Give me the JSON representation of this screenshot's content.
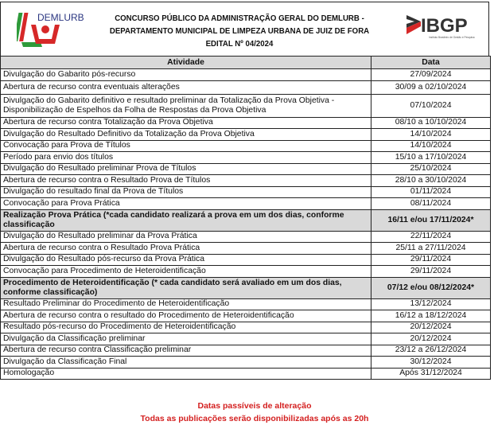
{
  "header": {
    "left_logo_text": "DEMLURB",
    "right_logo_text": "IBGP",
    "right_logo_subtitle": "Instituto Brasileiro de Gestão e Pesquisa",
    "title_lines": [
      "CONCURSO PÚBLICO DA ADMINISTRAÇÃO GERAL DO DEMLURB -",
      "DEPARTAMENTO MUNICIPAL DE LIMPEZA URBANA DE JUIZ DE FORA",
      "EDITAL Nº 04/2024"
    ]
  },
  "table": {
    "columns": [
      "Atividade",
      "Data"
    ],
    "rows": [
      {
        "activity": "Divulgação do Gabarito pós-recurso",
        "date": "27/09/2024"
      },
      {
        "activity": "Abertura de recurso contra eventuais alterações",
        "date": "30/09 a 02/10/2024"
      },
      {
        "activity": "Divulgação do Gabarito definitivo e resultado preliminar da Totalização da Prova Objetiva - Disponibilização de Espelhos da Folha de Respostas da Prova Objetiva",
        "date": "07/10/2024"
      },
      {
        "activity": "Abertura de recurso contra Totalização da Prova Objetiva",
        "date": "08/10 a 10/10/2024"
      },
      {
        "activity": "Divulgação do Resultado Definitivo da Totalização da Prova Objetiva",
        "date": "14/10/2024"
      },
      {
        "activity": "Convocação para Prova de Títulos",
        "date": "14/10/2024"
      },
      {
        "activity": "Período para envio dos títulos",
        "date": "15/10 a 17/10/2024"
      },
      {
        "activity": "Divulgação do Resultado preliminar Prova de Títulos",
        "date": "25/10/2024"
      },
      {
        "activity": "Abertura de recurso contra o Resultado Prova de Títulos",
        "date": "28/10 a 30/10/2024"
      },
      {
        "activity": "Divulgação do resultado final da Prova de Títulos",
        "date": "01/11/2024"
      },
      {
        "activity": "Convocação para Prova Prática",
        "date": "08/11/2024"
      },
      {
        "activity": "Realização Prova Prática (*cada candidato realizará a prova em um dos dias, conforme classificação",
        "date": "16/11 e/ou 17/11/2024*",
        "highlight": true
      },
      {
        "activity": "Divulgação do Resultado preliminar da Prova Prática",
        "date": "22/11/2024"
      },
      {
        "activity": "Abertura de recurso contra o Resultado Prova Prática",
        "date": "25/11 a 27/11/2024"
      },
      {
        "activity": "Divulgação do Resultado pós-recurso da Prova Prática",
        "date": "29/11/2024"
      },
      {
        "activity": "Convocação para Procedimento de Heteroidentificação",
        "date": "29/11/2024"
      },
      {
        "activity": "Procedimento de Heteroidentificação (* cada candidato será avaliado em um dos dias, conforme classificação)",
        "date": "07/12 e/ou 08/12/2024*",
        "highlight": true
      },
      {
        "activity": "Resultado Preliminar do Procedimento de Heteroidentificação",
        "date": "13/12/2024"
      },
      {
        "activity": "Abertura de recurso contra o resultado do Procedimento de Heteroidentificação",
        "date": "16/12 a 18/12/2024"
      },
      {
        "activity": "Resultado pós-recurso do Procedimento de Heteroidentificação",
        "date": "20/12/2024"
      },
      {
        "activity": "Divulgação da Classificação preliminar",
        "date": "20/12/2024"
      },
      {
        "activity": "Abertura de recurso contra Classificação preliminar",
        "date": "23/12 a 26/12/2024"
      },
      {
        "activity": "Divulgação da Classificação Final",
        "date": "30/12/2024"
      },
      {
        "activity": "Homologação",
        "date": "Após 31/12/2024"
      }
    ]
  },
  "footer": {
    "note1": "Datas passíveis de alteração",
    "note2": "Todas as publicações serão disponibilizadas após as 20h"
  },
  "colors": {
    "accent_red": "#d42020",
    "highlight_gray": "#d9d9d9"
  }
}
